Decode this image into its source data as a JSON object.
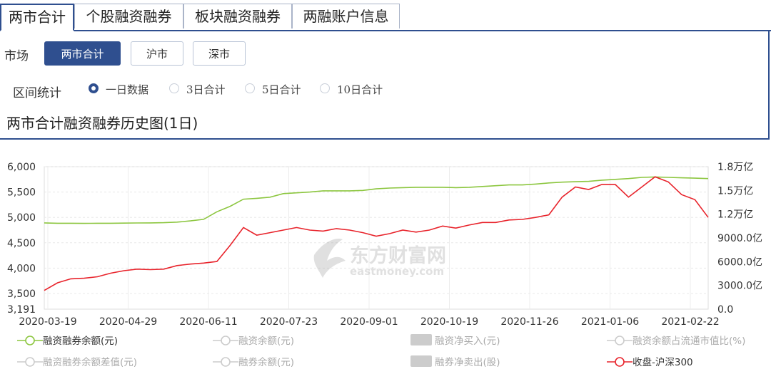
{
  "tabs": [
    "两市合计",
    "个股融资融券",
    "板块融资融券",
    "两融账户信息"
  ],
  "market": {
    "label": "市场",
    "options": [
      "两市合计",
      "沪市",
      "深市"
    ],
    "selected": "两市合计"
  },
  "interval": {
    "label": "区间统计",
    "options": [
      "一日数据",
      "3日合计",
      "5日合计",
      "10日合计"
    ],
    "selected": "一日数据"
  },
  "chart_title": "两市合计融资融券历史图(1日)",
  "watermark": {
    "cn": "东方财富网",
    "en": "eastmoney.com"
  },
  "chart_data": {
    "type": "line",
    "x_ticks": [
      "2020-03-19",
      "2020-04-29",
      "2020-06-11",
      "2020-07-23",
      "2020-09-01",
      "2020-10-19",
      "2020-11-26",
      "2021-01-06",
      "2021-02-22"
    ],
    "y_left_ticks": [
      "6,000",
      "5,500",
      "5,000",
      "4,500",
      "4,000",
      "3,500",
      "3,191"
    ],
    "y_left_range": [
      3191,
      6000
    ],
    "y_right_ticks": [
      "1.8万亿",
      "1.5万亿",
      "1.2万亿",
      "9000.0亿",
      "6000.0亿",
      "3000.0亿",
      "0.0"
    ],
    "y_right_range": [
      0,
      18000
    ],
    "grid": true,
    "series": [
      {
        "name": "融资融券余额(元)",
        "axis": "right",
        "color": "#8cc63f",
        "values": [
          10900,
          10850,
          10850,
          10840,
          10850,
          10850,
          10870,
          10890,
          10900,
          10930,
          11000,
          11150,
          11350,
          12300,
          13000,
          13900,
          14000,
          14150,
          14600,
          14700,
          14800,
          14950,
          14950,
          14950,
          15000,
          15200,
          15300,
          15350,
          15400,
          15400,
          15400,
          15350,
          15400,
          15500,
          15600,
          15700,
          15700,
          15800,
          15950,
          16050,
          16100,
          16150,
          16300,
          16400,
          16500,
          16650,
          16700,
          16650,
          16600,
          16550,
          16500
        ]
      },
      {
        "name": "收盘-沪深300",
        "axis": "left",
        "color": "#e8232b",
        "values": [
          3560,
          3710,
          3790,
          3800,
          3830,
          3900,
          3950,
          3980,
          3970,
          3980,
          4050,
          4080,
          4100,
          4130,
          4450,
          4800,
          4650,
          4700,
          4750,
          4800,
          4750,
          4730,
          4780,
          4750,
          4700,
          4630,
          4680,
          4750,
          4710,
          4750,
          4830,
          4790,
          4850,
          4900,
          4900,
          4950,
          4960,
          5000,
          5050,
          5400,
          5600,
          5550,
          5650,
          5650,
          5400,
          5600,
          5800,
          5700,
          5450,
          5350,
          5000
        ]
      }
    ],
    "legend": [
      {
        "label": "融资融券余额(元)",
        "kind": "line",
        "color": "#8cc63f",
        "active": true
      },
      {
        "label": "融资余额(元)",
        "kind": "line",
        "color": "#cccccc",
        "active": false
      },
      {
        "label": "融资净买入(元)",
        "kind": "bar",
        "color": "#cccccc",
        "active": false
      },
      {
        "label": "融资余额占流通市值比(%)",
        "kind": "line",
        "color": "#cccccc",
        "active": false
      },
      {
        "label": "融资融券余额差值(元)",
        "kind": "line",
        "color": "#cccccc",
        "active": false
      },
      {
        "label": "融券余额(元)",
        "kind": "line",
        "color": "#cccccc",
        "active": false
      },
      {
        "label": "融券净卖出(股)",
        "kind": "bar",
        "color": "#cccccc",
        "active": false
      },
      {
        "label": "收盘-沪深300",
        "kind": "line",
        "color": "#e8232b",
        "active": true
      }
    ]
  }
}
